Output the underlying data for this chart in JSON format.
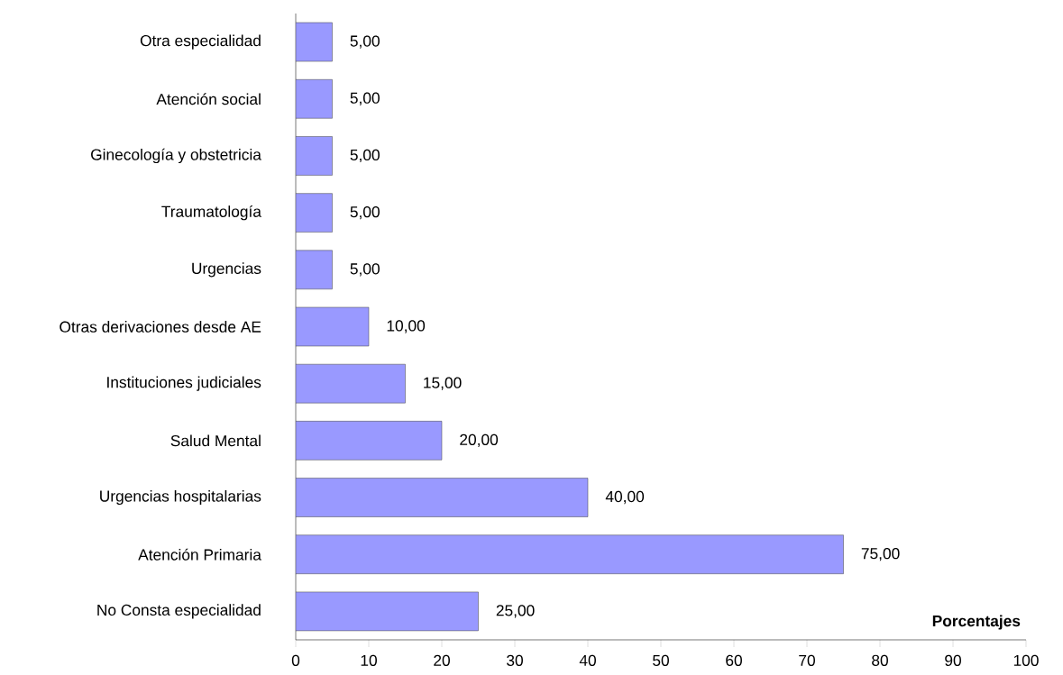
{
  "chart_data": {
    "type": "bar",
    "orientation": "horizontal",
    "xlabel": "Porcentajes",
    "categories": [
      "Otra especialidad",
      "Atención social",
      "Ginecología y obstetricia",
      "Traumatología",
      "Urgencias",
      "Otras derivaciones desde AE",
      "Instituciones judiciales",
      "Salud Mental",
      "Urgencias hospitalarias",
      "Atención Primaria",
      "No Consta especialidad"
    ],
    "values": [
      5,
      5,
      5,
      5,
      5,
      10,
      15,
      20,
      40,
      75,
      25
    ],
    "value_labels": [
      "5,00",
      "5,00",
      "5,00",
      "5,00",
      "5,00",
      "10,00",
      "15,00",
      "20,00",
      "40,00",
      "75,00",
      "25,00"
    ],
    "color": "#9999ff",
    "xlim": [
      0,
      100
    ],
    "xticks": [
      0,
      10,
      20,
      30,
      40,
      50,
      60,
      70,
      80,
      90,
      100
    ]
  }
}
